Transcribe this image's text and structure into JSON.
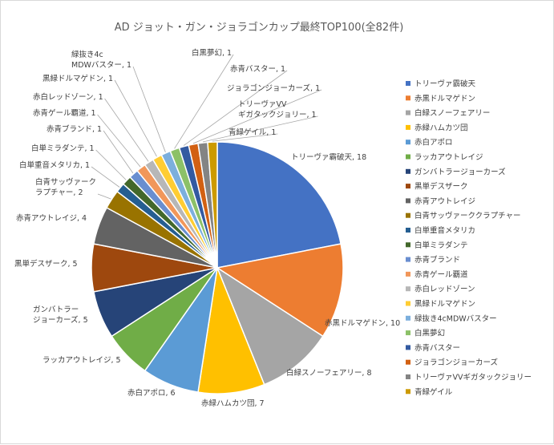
{
  "chart_data": {
    "type": "pie",
    "title": "AD ジョット・ガン・ジョラゴンカップ最終TOP100(全82件)",
    "legend_position": "right",
    "slices": [
      {
        "label": "トリーヴァ霸破天",
        "value": 18,
        "data_label": "トリーヴァ霸破天, 18",
        "color": "#4472C4"
      },
      {
        "label": "赤黒ドルマゲドン",
        "value": 10,
        "data_label": "赤黒ドルマゲドン, 10",
        "color": "#ED7D31"
      },
      {
        "label": "白緑スノーフェアリー",
        "value": 8,
        "data_label": "白緑スノーフェアリー, 8",
        "color": "#A5A5A5"
      },
      {
        "label": "赤緑ハムカツ団",
        "value": 7,
        "data_label": "赤緑ハムカツ団, 7",
        "color": "#FFC000"
      },
      {
        "label": "赤白アポロ",
        "value": 6,
        "data_label": "赤白アポロ, 6",
        "color": "#5B9BD5"
      },
      {
        "label": "ラッカアウトレイジ",
        "value": 5,
        "data_label": "ラッカアウトレイジ, 5",
        "color": "#70AD47"
      },
      {
        "label": "ガンバトラージョーカーズ",
        "value": 5,
        "data_label": "ガンバトラー\nジョーカーズ, 5",
        "color": "#264478"
      },
      {
        "label": "黒単デスザーク",
        "value": 5,
        "data_label": "黒単デスザーク, 5",
        "color": "#9E480E"
      },
      {
        "label": "赤青アウトレイジ",
        "value": 4,
        "data_label": "赤青アウトレイジ, 4",
        "color": "#636363"
      },
      {
        "label": "白青サッヴァーククラプチャー",
        "value": 2,
        "data_label": "白青サッヴァーク\nラプチャー, 2",
        "color": "#997300"
      },
      {
        "label": "白単重音メタリカ",
        "value": 1,
        "data_label": "白単重音メタリカ, 1",
        "color": "#255E91"
      },
      {
        "label": "白単ミラダンテ",
        "value": 1,
        "data_label": "白単ミラダンテ, 1",
        "color": "#43682B"
      },
      {
        "label": "赤青ブランド",
        "value": 1,
        "data_label": "赤青ブランド, 1",
        "color": "#698ED0"
      },
      {
        "label": "赤青ゲール覇道",
        "value": 1,
        "data_label": "赤青ゲール覇道, 1",
        "color": "#F1975A"
      },
      {
        "label": "赤白レッドゾーン",
        "value": 1,
        "data_label": "赤白レッドゾーン, 1",
        "color": "#B7B7B7"
      },
      {
        "label": "黒緑ドルマゲドン",
        "value": 1,
        "data_label": "黒緑ドルマゲドン, 1",
        "color": "#FFCD33"
      },
      {
        "label": "緑抜き4cMDWバスター",
        "value": 1,
        "data_label": "緑抜き4c\nMDWバスター, 1",
        "color": "#7CAFDD"
      },
      {
        "label": "白黒夢幻",
        "value": 1,
        "data_label": "白黒夢幻, 1",
        "color": "#8CC168"
      },
      {
        "label": "赤青バスター",
        "value": 1,
        "data_label": "赤青バスター, 1",
        "color": "#335AA1"
      },
      {
        "label": "ジョラゴンジョーカーズ",
        "value": 1,
        "data_label": "ジョラゴンジョーカーズ, 1",
        "color": "#D26012"
      },
      {
        "label": "トリーヴァVVギガタックジョリー",
        "value": 1,
        "data_label": "トリーヴァVV\nギガタックジョリー, 1",
        "color": "#848484"
      },
      {
        "label": "青緑ゲイル",
        "value": 1,
        "data_label": "青緑ゲイル, 1",
        "color": "#CC9A00"
      }
    ]
  }
}
